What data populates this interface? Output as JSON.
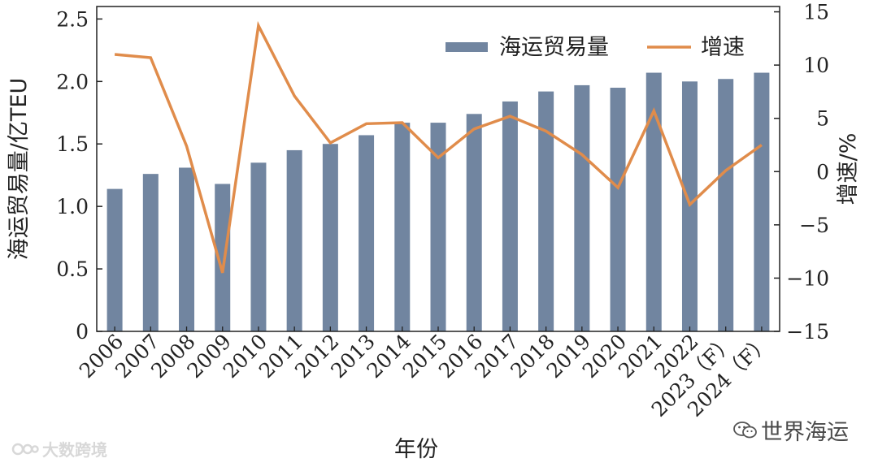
{
  "chart_data": {
    "type": "bar+line",
    "categories": [
      "2006",
      "2007",
      "2008",
      "2009",
      "2010",
      "2011",
      "2012",
      "2013",
      "2014",
      "2015",
      "2016",
      "2017",
      "2018",
      "2019",
      "2020",
      "2021",
      "2022",
      "2023（F）",
      "2024（F）"
    ],
    "series": [
      {
        "name": "海运贸易量",
        "type": "bar",
        "axis": "left",
        "values": [
          1.14,
          1.26,
          1.31,
          1.18,
          1.35,
          1.45,
          1.5,
          1.57,
          1.67,
          1.67,
          1.74,
          1.84,
          1.92,
          1.97,
          1.95,
          2.07,
          2.0,
          2.02,
          2.07
        ],
        "color": "#7185a0"
      },
      {
        "name": "增速",
        "type": "line",
        "axis": "right",
        "values": [
          11.0,
          10.7,
          2.4,
          -9.5,
          13.7,
          7.1,
          2.7,
          4.5,
          4.6,
          1.3,
          4.0,
          5.2,
          3.8,
          1.6,
          -1.5,
          5.7,
          -3.1,
          0.1,
          2.5
        ],
        "color": "#e08c4b"
      }
    ],
    "xlabel": "年份",
    "ylabel": "海运贸易量/亿TEU",
    "y2label": "增速/%",
    "ylim": [
      0,
      2.6
    ],
    "yticks": [
      "0",
      "0.5",
      "1.0",
      "1.5",
      "2.0",
      "2.5"
    ],
    "ytick_values": [
      0,
      0.5,
      1.0,
      1.5,
      2.0,
      2.5
    ],
    "y2lim": [
      -15,
      15.5
    ],
    "y2ticks": [
      "−15",
      "−10",
      "−5",
      "0",
      "5",
      "10",
      "15"
    ],
    "y2tick_values": [
      -15,
      -10,
      -5,
      0,
      5,
      10,
      15
    ],
    "legend_position": "top-right",
    "grid": false
  },
  "watermarks": {
    "right": "世界海运",
    "left": "大数跨境"
  }
}
